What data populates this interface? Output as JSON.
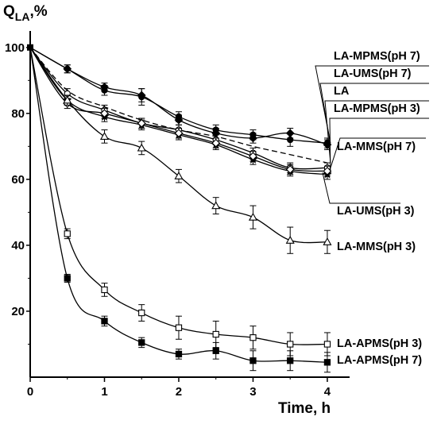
{
  "chart_data": {
    "type": "line",
    "ylabel_main": "Q",
    "ylabel_sub": "LA",
    "ylabel_unit": ",%",
    "xlabel": "Time, h",
    "xlim": [
      0,
      4.3
    ],
    "ylim": [
      0,
      105
    ],
    "xticks": [
      "0",
      "1",
      "2",
      "3",
      "4"
    ],
    "yticks": [
      "20",
      "40",
      "60",
      "80",
      "100"
    ],
    "grid": false,
    "series": [
      {
        "name": "LA-MPMS(pH 7)",
        "marker": "filled-circle",
        "dash": false,
        "x": [
          0,
          0.5,
          1,
          1.5,
          2,
          2.5,
          3,
          3.5,
          4
        ],
        "y": [
          100,
          93.5,
          87,
          85,
          79,
          75,
          73.5,
          72,
          71
        ],
        "err": [
          0,
          1.2,
          1.5,
          2.5,
          1.5,
          1.5,
          1.5,
          2,
          1.5
        ]
      },
      {
        "name": "LA-UMS(pH 7)",
        "marker": "filled-diamond",
        "dash": false,
        "x": [
          0,
          0.5,
          1,
          1.5,
          2,
          2.5,
          3,
          3.5,
          4
        ],
        "y": [
          100,
          93.5,
          88,
          85.5,
          78,
          74,
          72.5,
          74,
          70.5
        ],
        "err": [
          0,
          1.2,
          1.2,
          2,
          1.5,
          1.5,
          1.5,
          1.5,
          1.5
        ]
      },
      {
        "name": "LA",
        "marker": "none",
        "dash": true,
        "x": [
          0,
          0.5,
          1,
          1.5,
          2,
          2.5,
          3,
          3.5,
          4
        ],
        "y": [
          100,
          87,
          82,
          78,
          75,
          73,
          70,
          67.5,
          65
        ],
        "err": [
          0,
          0,
          0,
          0,
          0,
          0,
          0,
          0,
          0
        ]
      },
      {
        "name": "LA-MPMS(pH 3)",
        "marker": "star",
        "dash": false,
        "x": [
          0,
          0.5,
          1,
          1.5,
          2,
          2.5,
          3,
          3.5,
          4
        ],
        "y": [
          100,
          84,
          79,
          76.5,
          73.5,
          70.5,
          66,
          62.5,
          61.5
        ],
        "err": [
          0,
          1.5,
          1.5,
          1.5,
          1.5,
          1.5,
          1.5,
          1.5,
          1.5
        ]
      },
      {
        "name": "LA-MMS(pH 7)",
        "marker": "open-circle",
        "dash": false,
        "x": [
          0,
          0.5,
          1,
          1.5,
          2,
          2.5,
          3,
          3.5,
          4
        ],
        "y": [
          100,
          86,
          81,
          77,
          75,
          72,
          68,
          63.5,
          63.5
        ],
        "err": [
          0,
          1.5,
          1.5,
          1.5,
          1.5,
          1.5,
          1.5,
          1.5,
          1.5
        ]
      },
      {
        "name": "LA-UMS(pH 3)",
        "marker": "open-diamond",
        "dash": false,
        "x": [
          0,
          0.5,
          1,
          1.5,
          2,
          2.5,
          3,
          3.5,
          4
        ],
        "y": [
          100,
          83,
          80,
          77,
          74,
          71,
          67,
          63,
          62.5
        ],
        "err": [
          0,
          1.5,
          1.5,
          1.5,
          1.5,
          1.5,
          1.5,
          1.5,
          1.5
        ]
      },
      {
        "name": "LA-MMS(pH 3)",
        "marker": "open-triangle",
        "dash": false,
        "x": [
          0,
          0.5,
          1,
          1.5,
          2,
          2.5,
          3,
          3.5,
          4
        ],
        "y": [
          100,
          84,
          73,
          69.5,
          61,
          52,
          48.5,
          41.5,
          41
        ],
        "err": [
          0,
          1.5,
          2,
          2,
          2,
          2.5,
          3.5,
          4,
          3.5
        ]
      },
      {
        "name": "LA-APMS(pH 3)",
        "marker": "open-square",
        "dash": false,
        "x": [
          0,
          0.5,
          1,
          1.5,
          2,
          2.5,
          3,
          3.5,
          4
        ],
        "y": [
          100,
          43.5,
          26.5,
          19.5,
          15,
          13,
          12,
          10,
          10
        ],
        "err": [
          0,
          1.5,
          2,
          2.5,
          3.5,
          4,
          3.5,
          3.5,
          3.5
        ]
      },
      {
        "name": "LA-APMS(pH 7)",
        "marker": "filled-square",
        "dash": false,
        "x": [
          0,
          0.5,
          1,
          1.5,
          2,
          2.5,
          3,
          3.5,
          4
        ],
        "y": [
          100,
          30,
          17,
          10.5,
          7,
          8,
          5,
          5,
          4.5
        ],
        "err": [
          0,
          1.2,
          1.5,
          1.5,
          1.5,
          2.5,
          3,
          3,
          3
        ]
      }
    ],
    "labels": [
      {
        "text": "LA-MPMS(pH 7)",
        "series": 0
      },
      {
        "text": "LA-UMS(pH 7)",
        "series": 1
      },
      {
        "text": "LA",
        "series": 2
      },
      {
        "text": "LA-MPMS(pH 3)",
        "series": 3
      },
      {
        "text": "LA-MMS(pH 7)",
        "series": 4
      },
      {
        "text": "LA-UMS(pH 3)",
        "series": 5
      },
      {
        "text": "LA-MMS(pH 3)",
        "series": 6
      },
      {
        "text": "LA-APMS(pH 3)",
        "series": 7
      },
      {
        "text": "LA-APMS(pH 7)",
        "series": 8
      }
    ]
  }
}
